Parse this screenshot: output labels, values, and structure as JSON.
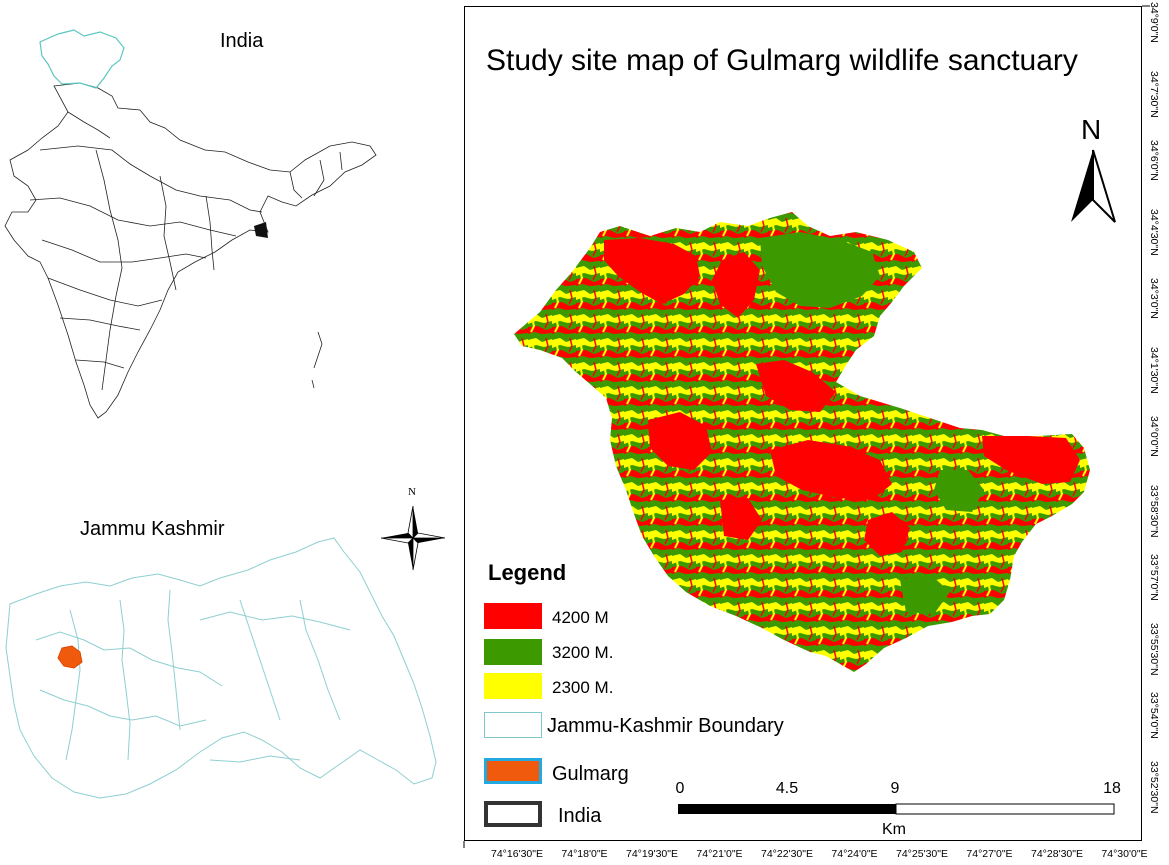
{
  "inset_india": {
    "title": "India"
  },
  "inset_jk": {
    "title": "Jammu Kashmir"
  },
  "compass_small": {
    "label": "N"
  },
  "main_map": {
    "title": "Study site map of Gulmarg wildlife sanctuary",
    "north_label": "N"
  },
  "legend": {
    "title": "Legend",
    "items": [
      {
        "label": "4200 M",
        "color": "#ff0000"
      },
      {
        "label": "3200 M.",
        "color": "#3c9a00"
      },
      {
        "label": "2300 M.",
        "color": "#ffff00"
      },
      {
        "label": "Jammu-Kashmir Boundary",
        "color": "#ffffff",
        "border": "#7fc8cc"
      },
      {
        "label": "Gulmarg",
        "color": "#f05a0c",
        "border": "#24a8e0"
      },
      {
        "label": "India",
        "color": "#ffffff",
        "border": "#333333"
      }
    ]
  },
  "scale_bar": {
    "ticks": [
      "0",
      "4.5",
      "9",
      "18"
    ],
    "unit": "Km"
  },
  "graticule": {
    "longitudes": [
      "74°16'30\"E",
      "74°18'0\"E",
      "74°19'30\"E",
      "74°21'0\"E",
      "74°22'30\"E",
      "74°24'0\"E",
      "74°25'30\"E",
      "74°27'0\"E",
      "74°28'30\"E",
      "74°30'0\"E"
    ],
    "latitudes": [
      "34°9'0\"N",
      "34°7'30\"N",
      "34°6'0\"N",
      "34°4'30\"N",
      "34°3'0\"N",
      "34°1'30\"N",
      "34°0'0\"N",
      "33°58'30\"N",
      "33°57'0\"N",
      "33°55'30\"N",
      "33°54'0\"N",
      "33°52'30\"N"
    ]
  }
}
